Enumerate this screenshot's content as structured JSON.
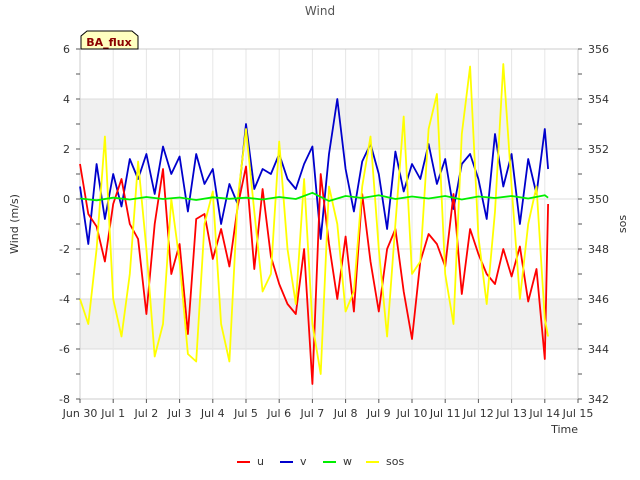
{
  "chart_data": {
    "type": "line",
    "title": "Wind",
    "badge": "BA_flux",
    "xlabel": "Time",
    "ylabel_left": "Wind (m/s)",
    "ylabel_right": "sos",
    "xlim": [
      0,
      15
    ],
    "ylim_left": [
      -8,
      6
    ],
    "ylim_right": [
      342,
      356
    ],
    "x_ticks": [
      {
        "x": 0,
        "label": "Jun 30"
      },
      {
        "x": 1,
        "label": "Jul 1"
      },
      {
        "x": 2,
        "label": "Jul 2"
      },
      {
        "x": 3,
        "label": "Jul 3"
      },
      {
        "x": 4,
        "label": "Jul 4"
      },
      {
        "x": 5,
        "label": "Jul 5"
      },
      {
        "x": 6,
        "label": "Jul 6"
      },
      {
        "x": 7,
        "label": "Jul 7"
      },
      {
        "x": 8,
        "label": "Jul 8"
      },
      {
        "x": 9,
        "label": "Jul 9"
      },
      {
        "x": 10,
        "label": "Jul 10"
      },
      {
        "x": 11,
        "label": "Jul 11"
      },
      {
        "x": 12,
        "label": "Jul 12"
      },
      {
        "x": 13,
        "label": "Jul 13"
      },
      {
        "x": 14,
        "label": "Jul 14"
      },
      {
        "x": 15,
        "label": "Jul 15"
      }
    ],
    "y_ticks_left": [
      6,
      4,
      2,
      0,
      -2,
      -4,
      -6,
      -8
    ],
    "y_ticks_right": [
      356,
      354,
      352,
      350,
      348,
      346,
      344,
      342
    ],
    "grid": true,
    "legend_position": "bottom",
    "colors": {
      "u": "#ff0000",
      "v": "#0000cc",
      "w": "#00ee00",
      "sos": "#ffff00",
      "band": "#f0f0f0",
      "badge_bg": "#ffffc0",
      "badge_text": "#8b0000"
    },
    "series": [
      {
        "name": "u",
        "axis": "left",
        "x": [
          0,
          0.25,
          0.5,
          0.75,
          1,
          1.25,
          1.5,
          1.75,
          2,
          2.25,
          2.5,
          2.75,
          3,
          3.25,
          3.5,
          3.75,
          4,
          4.25,
          4.5,
          4.75,
          5,
          5.25,
          5.5,
          5.75,
          6,
          6.25,
          6.5,
          6.75,
          7,
          7.25,
          7.5,
          7.75,
          8,
          8.25,
          8.5,
          8.75,
          9,
          9.25,
          9.5,
          9.75,
          10,
          10.25,
          10.5,
          10.75,
          11,
          11.25,
          11.5,
          11.75,
          12,
          12.25,
          12.5,
          12.75,
          13,
          13.25,
          13.5,
          13.75,
          14,
          14.1
        ],
        "y": [
          1.4,
          -0.6,
          -1.1,
          -2.5,
          -0.2,
          0.8,
          -1.0,
          -1.6,
          -4.6,
          -1.0,
          1.2,
          -3.0,
          -1.8,
          -5.4,
          -0.8,
          -0.6,
          -2.4,
          -1.2,
          -2.7,
          -0.3,
          1.3,
          -2.8,
          0.4,
          -2.3,
          -3.4,
          -4.2,
          -4.6,
          -2.0,
          -7.4,
          1.0,
          -1.8,
          -4.0,
          -1.5,
          -4.5,
          0.2,
          -2.5,
          -4.5,
          -2.0,
          -1.2,
          -3.7,
          -5.6,
          -2.5,
          -1.4,
          -1.8,
          -2.7,
          0.2,
          -3.8,
          -1.2,
          -2.2,
          -3.0,
          -3.4,
          -2.0,
          -3.1,
          -1.9,
          -4.1,
          -2.8,
          -6.4,
          -0.2
        ]
      },
      {
        "name": "v",
        "axis": "left",
        "x": [
          0,
          0.25,
          0.5,
          0.75,
          1,
          1.25,
          1.5,
          1.75,
          2,
          2.25,
          2.5,
          2.75,
          3,
          3.25,
          3.5,
          3.75,
          4,
          4.25,
          4.5,
          4.75,
          5,
          5.25,
          5.5,
          5.75,
          6,
          6.25,
          6.5,
          6.75,
          7,
          7.25,
          7.5,
          7.75,
          8,
          8.25,
          8.5,
          8.75,
          9,
          9.25,
          9.5,
          9.75,
          10,
          10.25,
          10.5,
          10.75,
          11,
          11.25,
          11.5,
          11.75,
          12,
          12.25,
          12.5,
          12.75,
          13,
          13.25,
          13.5,
          13.75,
          14,
          14.1
        ],
        "y": [
          0.5,
          -1.8,
          1.4,
          -0.8,
          1.0,
          -0.3,
          1.6,
          0.8,
          1.8,
          0.2,
          2.1,
          1.0,
          1.7,
          -0.5,
          1.8,
          0.6,
          1.2,
          -1.0,
          0.6,
          -0.2,
          3.0,
          0.4,
          1.2,
          1.0,
          1.8,
          0.8,
          0.4,
          1.4,
          2.1,
          -1.6,
          1.8,
          4.0,
          1.2,
          -0.5,
          1.5,
          2.2,
          1.0,
          -1.2,
          1.9,
          0.3,
          1.4,
          0.8,
          2.2,
          0.6,
          1.6,
          -0.4,
          1.4,
          1.8,
          0.8,
          -0.8,
          2.6,
          0.5,
          1.8,
          -1.0,
          1.6,
          0.2,
          2.8,
          1.2
        ]
      },
      {
        "name": "w",
        "axis": "left",
        "x": [
          0,
          0.5,
          1,
          1.5,
          2,
          2.5,
          3,
          3.5,
          4,
          4.5,
          5,
          5.5,
          6,
          6.5,
          7,
          7.5,
          8,
          8.5,
          9,
          9.5,
          10,
          10.5,
          11,
          11.5,
          12,
          12.5,
          13,
          13.5,
          14,
          14.1
        ],
        "y": [
          0.02,
          -0.05,
          0.05,
          -0.02,
          0.08,
          0.0,
          0.06,
          -0.04,
          0.07,
          0.01,
          0.05,
          -0.02,
          0.08,
          0.0,
          0.25,
          -0.08,
          0.12,
          0.04,
          0.15,
          0.0,
          0.1,
          0.02,
          0.12,
          -0.02,
          0.1,
          0.04,
          0.12,
          0.02,
          0.15,
          0.05
        ]
      },
      {
        "name": "sos",
        "axis": "right",
        "x": [
          0,
          0.25,
          0.5,
          0.75,
          1,
          1.25,
          1.5,
          1.75,
          2,
          2.25,
          2.5,
          2.75,
          3,
          3.25,
          3.5,
          3.75,
          4,
          4.25,
          4.5,
          4.75,
          5,
          5.25,
          5.5,
          5.75,
          6,
          6.25,
          6.5,
          6.75,
          7,
          7.25,
          7.5,
          7.75,
          8,
          8.25,
          8.5,
          8.75,
          9,
          9.25,
          9.5,
          9.75,
          10,
          10.25,
          10.5,
          10.75,
          11,
          11.25,
          11.5,
          11.75,
          12,
          12.25,
          12.5,
          12.75,
          13,
          13.25,
          13.5,
          13.75,
          14,
          14.1
        ],
        "y": [
          346.0,
          345.0,
          348.0,
          352.5,
          346.0,
          344.5,
          347.0,
          351.5,
          348.0,
          343.7,
          345.0,
          350.0,
          347.5,
          343.8,
          343.5,
          349.0,
          350.3,
          345.0,
          343.5,
          350.0,
          352.8,
          349.5,
          346.3,
          347.0,
          352.3,
          348.0,
          345.8,
          350.8,
          345.0,
          343.0,
          350.5,
          349.0,
          345.5,
          346.3,
          350.5,
          352.5,
          348.0,
          344.5,
          349.0,
          353.3,
          347.0,
          347.5,
          352.8,
          354.2,
          347.0,
          345.0,
          352.6,
          355.3,
          348.5,
          345.8,
          349.5,
          355.4,
          350.5,
          346.0,
          349.0,
          350.5,
          345.2,
          344.5
        ]
      }
    ]
  }
}
